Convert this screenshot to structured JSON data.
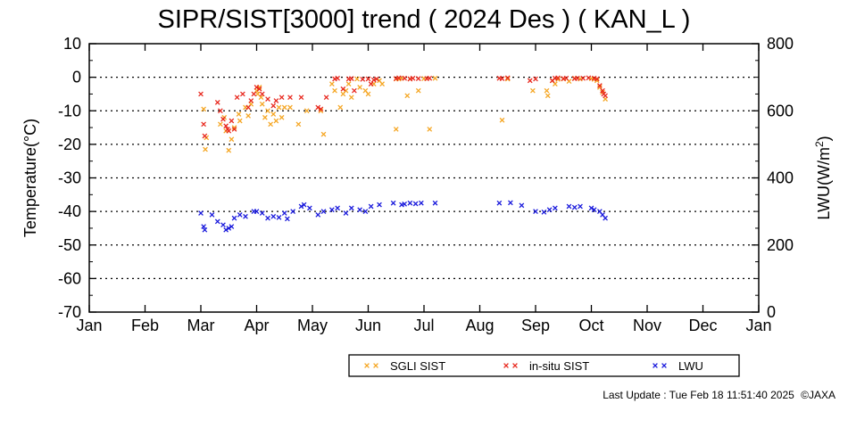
{
  "title": "SIPR/SIST[3000] trend ( 2024 Des ) ( KAN_L )",
  "footer": {
    "last_update": "Last Update : Tue Feb 18 11:51:40 2025",
    "copyright": "©JAXA"
  },
  "chart_data": {
    "type": "scatter",
    "title": "SIPR/SIST[3000] trend ( 2024 Des ) ( KAN_L )",
    "x_ticks": [
      "Jan",
      "Feb",
      "Mar",
      "Apr",
      "May",
      "Jun",
      "Jul",
      "Aug",
      "Sep",
      "Oct",
      "Nov",
      "Dec",
      "Jan"
    ],
    "x_unit": "month index (0 = Jan 1, 12 = next Jan 1)",
    "left_axis": {
      "label": "Temperature(°C)",
      "ylim": [
        -70,
        10
      ],
      "ticks": [
        10,
        0,
        -10,
        -20,
        -30,
        -40,
        -50,
        -60,
        -70
      ]
    },
    "right_axis": {
      "label_base": "LWU(W/m",
      "label_sup": "2",
      "label_end": ")",
      "ylim": [
        0,
        800
      ],
      "ticks": [
        800,
        600,
        400,
        200,
        0
      ]
    },
    "grid": "horizontal dotted",
    "legend_position": "bottom-right",
    "colors": {
      "sgli": "#f5a623",
      "insitu": "#e8281e",
      "lwu": "#1a1adc"
    },
    "series": [
      {
        "name": "SGLI SIST",
        "axis": "left",
        "color": "#f5a623",
        "points": [
          [
            2.05,
            -9.5
          ],
          [
            2.08,
            -21.5
          ],
          [
            2.1,
            -18
          ],
          [
            2.35,
            -14
          ],
          [
            2.42,
            -12
          ],
          [
            2.45,
            -16
          ],
          [
            2.5,
            -21.8
          ],
          [
            2.55,
            -18.5
          ],
          [
            2.6,
            -15
          ],
          [
            2.68,
            -11
          ],
          [
            2.7,
            -13
          ],
          [
            2.8,
            -9
          ],
          [
            2.85,
            -11.5
          ],
          [
            2.9,
            -8
          ],
          [
            3.0,
            -4
          ],
          [
            3.02,
            -5
          ],
          [
            3.05,
            -3
          ],
          [
            3.08,
            -6
          ],
          [
            3.1,
            -8
          ],
          [
            3.15,
            -12
          ],
          [
            3.2,
            -10
          ],
          [
            3.25,
            -14
          ],
          [
            3.3,
            -11
          ],
          [
            3.35,
            -13
          ],
          [
            3.4,
            -9
          ],
          [
            3.45,
            -12
          ],
          [
            3.5,
            -9
          ],
          [
            3.6,
            -9
          ],
          [
            3.75,
            -14
          ],
          [
            3.9,
            -10
          ],
          [
            4.15,
            -10
          ],
          [
            4.2,
            -17
          ],
          [
            4.35,
            -2
          ],
          [
            4.4,
            -4
          ],
          [
            4.5,
            -9
          ],
          [
            4.55,
            -5
          ],
          [
            4.6,
            -4
          ],
          [
            4.65,
            -2
          ],
          [
            4.7,
            -6
          ],
          [
            4.8,
            -0.5
          ],
          [
            4.85,
            -3
          ],
          [
            4.95,
            -4
          ],
          [
            5.0,
            -5
          ],
          [
            5.1,
            -2
          ],
          [
            5.2,
            -1
          ],
          [
            5.25,
            -2
          ],
          [
            5.5,
            -0.5
          ],
          [
            5.5,
            -15.5
          ],
          [
            5.55,
            -0.5
          ],
          [
            5.6,
            -0.3
          ],
          [
            5.7,
            -5.5
          ],
          [
            5.75,
            -0.5
          ],
          [
            5.9,
            -4
          ],
          [
            6.0,
            -0.4
          ],
          [
            6.1,
            -15.5
          ],
          [
            6.2,
            -0.3
          ],
          [
            7.4,
            -12.8
          ],
          [
            7.5,
            -0.5
          ],
          [
            7.95,
            -4
          ],
          [
            8.2,
            -4
          ],
          [
            8.22,
            -5.5
          ],
          [
            8.3,
            -1
          ],
          [
            8.35,
            -2
          ],
          [
            8.4,
            -0.6
          ],
          [
            8.5,
            -0.5
          ],
          [
            8.6,
            -1.2
          ],
          [
            8.7,
            -0.3
          ],
          [
            8.8,
            -0.5
          ],
          [
            9.0,
            -0.4
          ],
          [
            9.05,
            -0.6
          ],
          [
            9.1,
            -1
          ],
          [
            9.15,
            -3
          ],
          [
            9.2,
            -4.5
          ],
          [
            9.25,
            -6.5
          ]
        ]
      },
      {
        "name": "in-situ SIST",
        "axis": "left",
        "color": "#e8281e",
        "points": [
          [
            2.0,
            -5
          ],
          [
            2.05,
            -14
          ],
          [
            2.07,
            -17.5
          ],
          [
            2.3,
            -7.5
          ],
          [
            2.35,
            -10
          ],
          [
            2.4,
            -12.5
          ],
          [
            2.45,
            -14.5
          ],
          [
            2.48,
            -15.5
          ],
          [
            2.5,
            -16
          ],
          [
            2.55,
            -13
          ],
          [
            2.6,
            -15.5
          ],
          [
            2.65,
            -6
          ],
          [
            2.75,
            -5
          ],
          [
            2.85,
            -9
          ],
          [
            2.9,
            -7
          ],
          [
            2.95,
            -5
          ],
          [
            3.0,
            -3
          ],
          [
            3.05,
            -3.5
          ],
          [
            3.1,
            -5
          ],
          [
            3.2,
            -6.5
          ],
          [
            3.3,
            -8.5
          ],
          [
            3.35,
            -7
          ],
          [
            3.45,
            -6
          ],
          [
            3.6,
            -6
          ],
          [
            3.8,
            -6
          ],
          [
            4.1,
            -9
          ],
          [
            4.15,
            -9.5
          ],
          [
            4.25,
            -6
          ],
          [
            4.4,
            -0.5
          ],
          [
            4.45,
            -0.3
          ],
          [
            4.55,
            -3.5
          ],
          [
            4.65,
            -0.5
          ],
          [
            4.7,
            -0.4
          ],
          [
            4.75,
            -4
          ],
          [
            4.9,
            -0.6
          ],
          [
            5.0,
            -0.5
          ],
          [
            5.05,
            -2
          ],
          [
            5.1,
            -0.8
          ],
          [
            5.15,
            -0.5
          ],
          [
            5.5,
            -0.4
          ],
          [
            5.55,
            -0.2
          ],
          [
            5.65,
            -0.3
          ],
          [
            5.75,
            -0.5
          ],
          [
            5.8,
            -0.3
          ],
          [
            5.9,
            -0.4
          ],
          [
            6.05,
            -0.4
          ],
          [
            6.1,
            -0.3
          ],
          [
            7.35,
            -0.3
          ],
          [
            7.4,
            -0.4
          ],
          [
            7.5,
            -0.2
          ],
          [
            7.9,
            -1
          ],
          [
            8.0,
            -0.5
          ],
          [
            8.3,
            -1
          ],
          [
            8.35,
            -0.3
          ],
          [
            8.4,
            -0.2
          ],
          [
            8.5,
            -0.4
          ],
          [
            8.55,
            -0.3
          ],
          [
            8.7,
            -0.4
          ],
          [
            8.75,
            -0.3
          ],
          [
            8.85,
            -0.3
          ],
          [
            8.95,
            -0.2
          ],
          [
            9.05,
            -0.3
          ],
          [
            9.1,
            -0.5
          ],
          [
            9.15,
            -2.5
          ],
          [
            9.2,
            -4
          ],
          [
            9.22,
            -5
          ],
          [
            9.25,
            -5.5
          ]
        ]
      },
      {
        "name": "LWU",
        "axis": "right",
        "color": "#1a1adc",
        "points": [
          [
            2.0,
            295
          ],
          [
            2.05,
            255
          ],
          [
            2.07,
            245
          ],
          [
            2.2,
            290
          ],
          [
            2.3,
            270
          ],
          [
            2.4,
            260
          ],
          [
            2.45,
            245
          ],
          [
            2.5,
            250
          ],
          [
            2.55,
            255
          ],
          [
            2.6,
            280
          ],
          [
            2.7,
            290
          ],
          [
            2.8,
            285
          ],
          [
            2.95,
            300
          ],
          [
            3.0,
            300
          ],
          [
            3.1,
            295
          ],
          [
            3.2,
            280
          ],
          [
            3.3,
            285
          ],
          [
            3.4,
            282
          ],
          [
            3.5,
            295
          ],
          [
            3.55,
            278
          ],
          [
            3.65,
            300
          ],
          [
            3.8,
            315
          ],
          [
            3.85,
            320
          ],
          [
            3.95,
            310
          ],
          [
            4.1,
            290
          ],
          [
            4.2,
            300
          ],
          [
            4.35,
            305
          ],
          [
            4.45,
            310
          ],
          [
            4.6,
            295
          ],
          [
            4.7,
            310
          ],
          [
            4.85,
            305
          ],
          [
            4.95,
            300
          ],
          [
            5.05,
            315
          ],
          [
            5.2,
            320
          ],
          [
            5.45,
            325
          ],
          [
            5.6,
            320
          ],
          [
            5.65,
            322
          ],
          [
            5.75,
            325
          ],
          [
            5.85,
            323
          ],
          [
            5.95,
            325
          ],
          [
            6.2,
            325
          ],
          [
            7.35,
            325
          ],
          [
            7.55,
            326
          ],
          [
            7.75,
            318
          ],
          [
            8.0,
            300
          ],
          [
            8.15,
            298
          ],
          [
            8.25,
            305
          ],
          [
            8.35,
            310
          ],
          [
            8.6,
            315
          ],
          [
            8.7,
            312
          ],
          [
            8.8,
            315
          ],
          [
            9.0,
            310
          ],
          [
            9.05,
            305
          ],
          [
            9.15,
            300
          ],
          [
            9.2,
            290
          ],
          [
            9.25,
            280
          ]
        ]
      }
    ]
  }
}
